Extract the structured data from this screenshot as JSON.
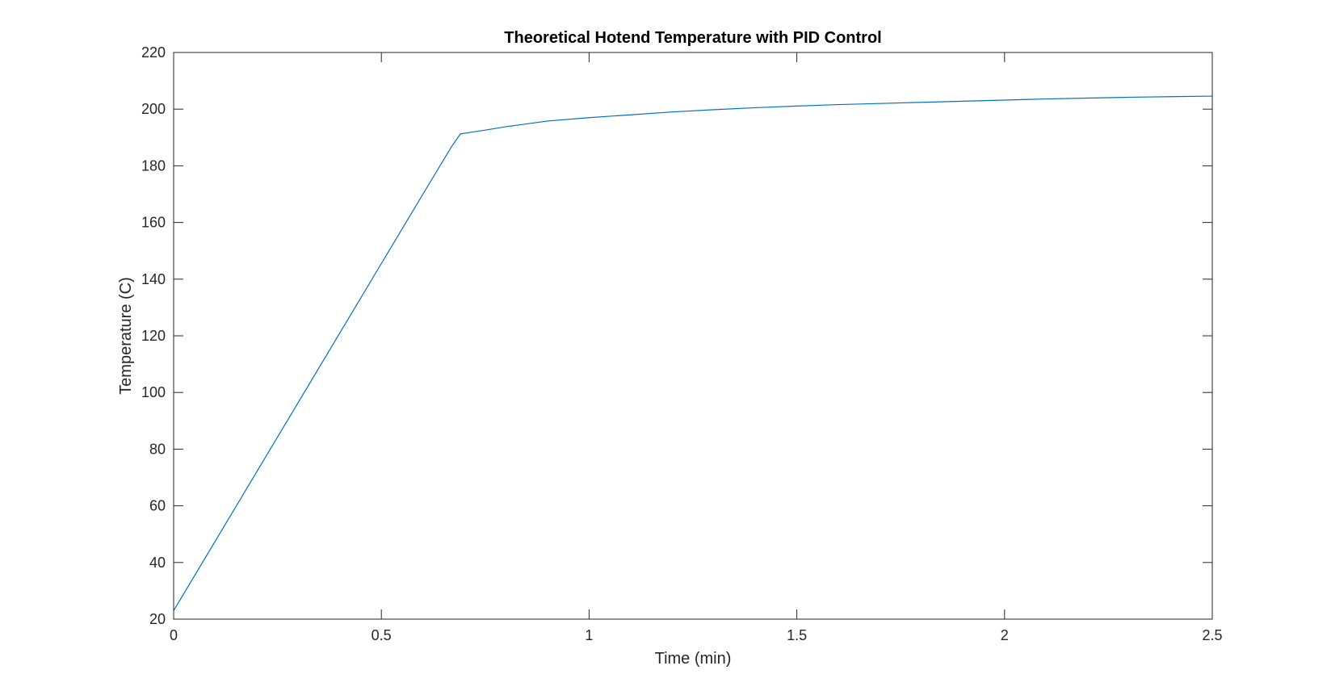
{
  "chart_data": {
    "type": "line",
    "title": "Theoretical Hotend Temperature with PID Control",
    "xlabel": "Time (min)",
    "ylabel": "Temperature (C)",
    "xlim": [
      0,
      2.5
    ],
    "ylim": [
      20,
      220
    ],
    "xticks": [
      0,
      0.5,
      1,
      1.5,
      2,
      2.5
    ],
    "xtick_labels": [
      "0",
      "0.5",
      "1",
      "1.5",
      "2",
      "2.5"
    ],
    "yticks": [
      20,
      40,
      60,
      80,
      100,
      120,
      140,
      160,
      180,
      200,
      220
    ],
    "ytick_labels": [
      "20",
      "40",
      "60",
      "80",
      "100",
      "120",
      "140",
      "160",
      "180",
      "200",
      "220"
    ],
    "grid": false,
    "box": true,
    "series": [
      {
        "color": "#0072BD",
        "x": [
          0,
          0.1,
          0.2,
          0.3,
          0.4,
          0.5,
          0.6,
          0.67,
          0.69,
          0.7,
          0.75,
          0.8,
          0.9,
          1.0,
          1.1,
          1.2,
          1.3,
          1.4,
          1.5,
          1.6,
          1.7,
          1.8,
          1.9,
          2.0,
          2.1,
          2.2,
          2.3,
          2.4,
          2.5
        ],
        "y": [
          23,
          47.5,
          72,
          96.5,
          121,
          145.5,
          170,
          187,
          191.2,
          191.5,
          192.6,
          193.8,
          195.8,
          197,
          198,
          199,
          199.8,
          200.5,
          201.1,
          201.6,
          202,
          202.4,
          202.8,
          203.2,
          203.6,
          203.9,
          204.2,
          204.4,
          204.6
        ]
      }
    ]
  }
}
